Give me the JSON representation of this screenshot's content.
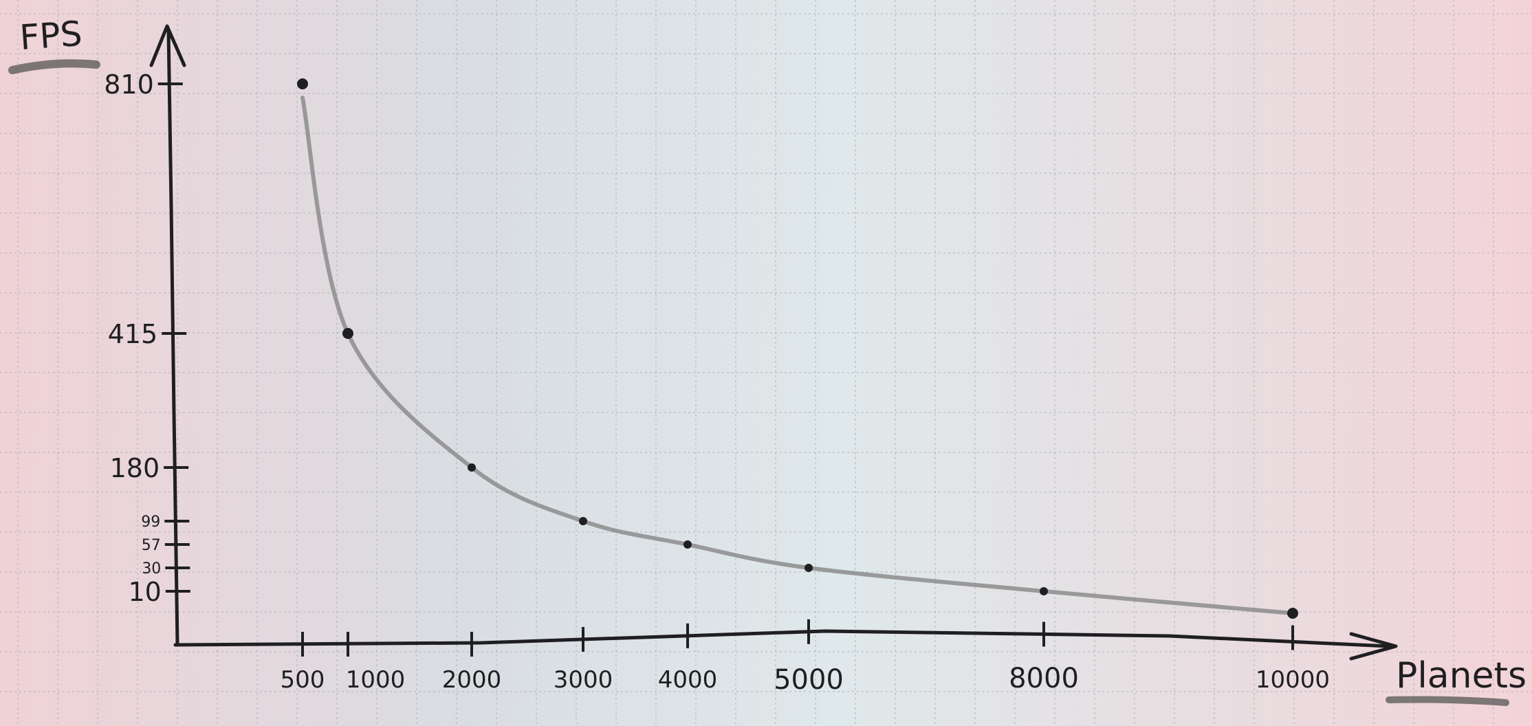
{
  "chart_data": {
    "type": "line",
    "ylabel": "FPS",
    "xlabel": "Planets",
    "x": [
      500,
      1000,
      2000,
      3000,
      4000,
      5000,
      8000,
      10000
    ],
    "series": [
      {
        "values": [
          810,
          415,
          180,
          99,
          57,
          30,
          10,
          8
        ]
      }
    ],
    "x_tick_labels": [
      "500",
      "1000",
      "2000",
      "3000",
      "4000",
      "5000",
      "8000",
      "10000"
    ],
    "y_tick_labels": [
      "810",
      "415",
      "180",
      "99",
      "57",
      "30",
      "10"
    ],
    "grid": true,
    "colors": {
      "ink": "#1f1f22",
      "curve": "#8c8c8c",
      "grid": "#aab0b6"
    }
  }
}
